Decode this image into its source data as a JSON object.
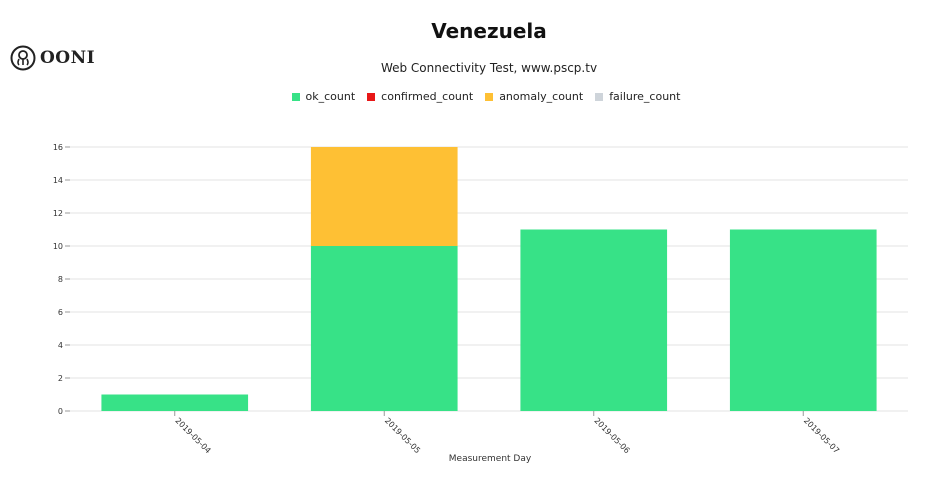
{
  "brand": {
    "name": "OONI",
    "icon": "ooni-octopus-icon"
  },
  "chart_data": {
    "type": "bar",
    "stacked": true,
    "title": "Venezuela",
    "subtitle": "Web Connectivity Test, www.pscp.tv",
    "xlabel": "Measurement Day",
    "ylabel": "",
    "categories": [
      "2019-05-04",
      "2019-05-05",
      "2019-05-06",
      "2019-05-07"
    ],
    "series": [
      {
        "name": "ok_count",
        "color": "#37e287",
        "values": [
          1,
          10,
          11,
          11
        ]
      },
      {
        "name": "confirmed_count",
        "color": "#e81717",
        "values": [
          0,
          0,
          0,
          0
        ]
      },
      {
        "name": "anomaly_count",
        "color": "#fec034",
        "values": [
          0,
          6,
          0,
          0
        ]
      },
      {
        "name": "failure_count",
        "color": "#ced4da",
        "values": [
          0,
          0,
          0,
          0
        ]
      }
    ],
    "ylim": [
      0,
      16
    ],
    "yticks": [
      0,
      2,
      4,
      6,
      8,
      10,
      12,
      14,
      16
    ],
    "grid": true,
    "legend_position": "top-center"
  }
}
